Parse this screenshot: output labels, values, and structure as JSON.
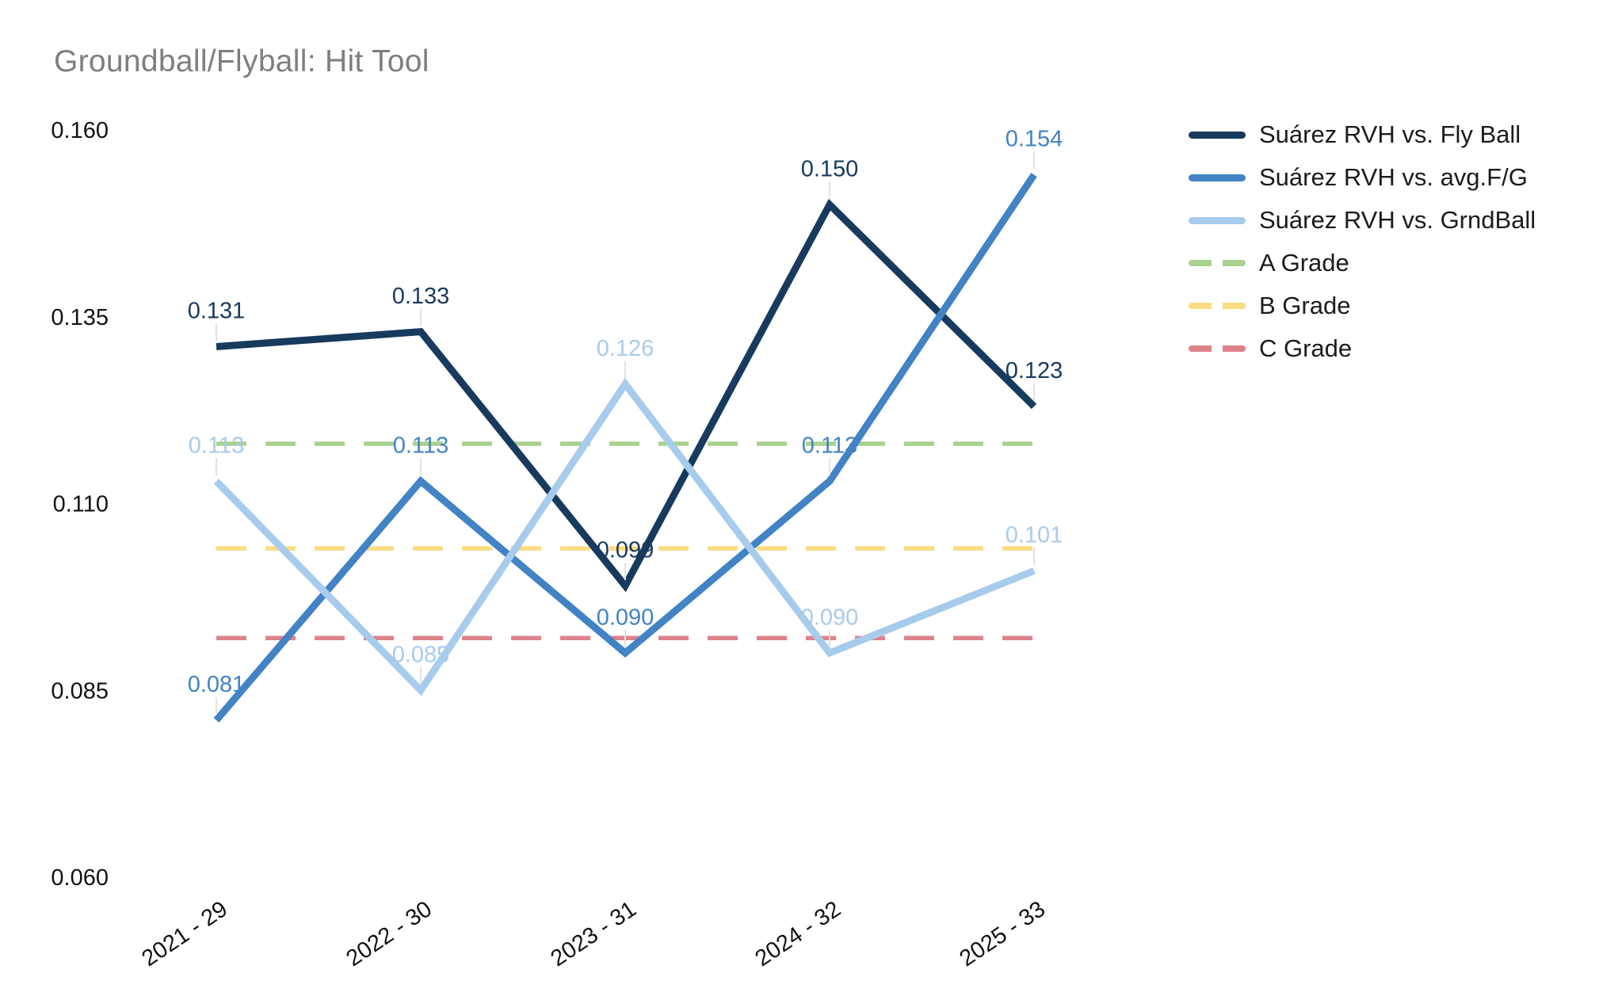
{
  "chart_data": {
    "type": "line",
    "title": "Groundball/Flyball: Hit Tool",
    "title_color": "#7e7e7e",
    "categories": [
      "2021 - 29",
      "2022 - 30",
      "2023 - 31",
      "2024 - 32",
      "2025 - 33"
    ],
    "series": [
      {
        "name": "Suárez RVH vs. Fly Ball",
        "color": "#173A5E",
        "values": [
          0.131,
          0.133,
          0.099,
          0.15,
          0.123
        ]
      },
      {
        "name": "Suárez RVH vs. avg.F/G",
        "color": "#4183C4",
        "values": [
          0.081,
          0.113,
          0.09,
          0.113,
          0.154
        ]
      },
      {
        "name": "Suárez RVH vs. GrndBall",
        "color": "#A7CBEC",
        "values": [
          0.113,
          0.085,
          0.126,
          0.09,
          0.101
        ]
      }
    ],
    "reference_lines": [
      {
        "name": "A Grade",
        "color": "#A9D18E",
        "value": 0.118
      },
      {
        "name": "B Grade",
        "color": "#FADC80",
        "value": 0.104
      },
      {
        "name": "C Grade",
        "color": "#DE838B",
        "value": 0.092
      }
    ],
    "y_ticks": [
      "0.160",
      "0.135",
      "0.110",
      "0.085",
      "0.060"
    ],
    "ylim": [
      0.06,
      0.16
    ],
    "grid": false,
    "legend_position": "right",
    "axis_text_color": "#121212",
    "leader_line_color": "#E2E2E2",
    "background": "#ffffff",
    "data_label_format": "0.000"
  }
}
